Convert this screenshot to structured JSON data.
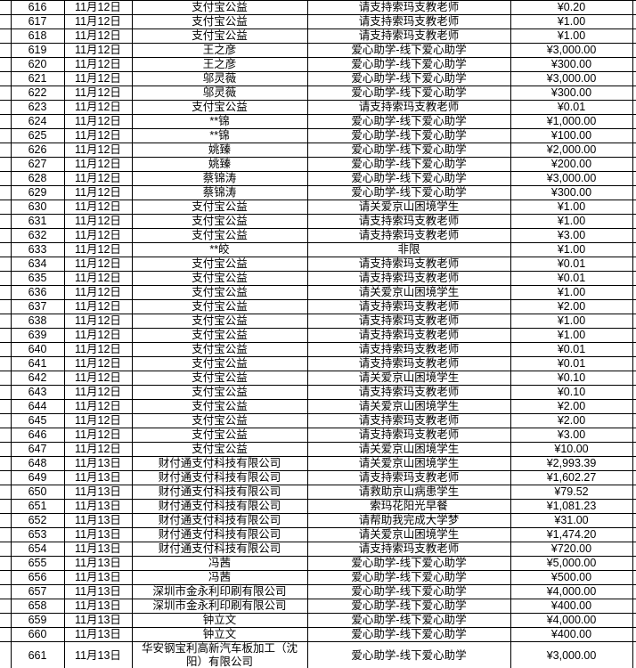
{
  "table": {
    "columns": [
      {
        "key": "id",
        "label": "serial-number"
      },
      {
        "key": "date",
        "label": "donation-date"
      },
      {
        "key": "donor",
        "label": "donor-name"
      },
      {
        "key": "project",
        "label": "donation-project"
      },
      {
        "key": "amount",
        "label": "donation-amount"
      }
    ],
    "rows": [
      {
        "id": "616",
        "date": "11月12日",
        "donor": "支付宝公益",
        "project": "请支持索玛支教老师",
        "amount": "¥0.20"
      },
      {
        "id": "617",
        "date": "11月12日",
        "donor": "支付宝公益",
        "project": "请支持索玛支教老师",
        "amount": "¥1.00"
      },
      {
        "id": "618",
        "date": "11月12日",
        "donor": "支付宝公益",
        "project": "请支持索玛支教老师",
        "amount": "¥1.00"
      },
      {
        "id": "619",
        "date": "11月12日",
        "donor": "王之彦",
        "project": "爱心助学-线下爱心助学",
        "amount": "¥3,000.00"
      },
      {
        "id": "620",
        "date": "11月12日",
        "donor": "王之彦",
        "project": "爱心助学-线下爱心助学",
        "amount": "¥300.00"
      },
      {
        "id": "621",
        "date": "11月12日",
        "donor": "邬灵薇",
        "project": "爱心助学-线下爱心助学",
        "amount": "¥3,000.00"
      },
      {
        "id": "622",
        "date": "11月12日",
        "donor": "邬灵薇",
        "project": "爱心助学-线下爱心助学",
        "amount": "¥300.00"
      },
      {
        "id": "623",
        "date": "11月12日",
        "donor": "支付宝公益",
        "project": "请支持索玛支教老师",
        "amount": "¥0.01"
      },
      {
        "id": "624",
        "date": "11月12日",
        "donor": "**锦",
        "project": "爱心助学-线下爱心助学",
        "amount": "¥1,000.00"
      },
      {
        "id": "625",
        "date": "11月12日",
        "donor": "**锦",
        "project": "爱心助学-线下爱心助学",
        "amount": "¥100.00"
      },
      {
        "id": "626",
        "date": "11月12日",
        "donor": "姚臻",
        "project": "爱心助学-线下爱心助学",
        "amount": "¥2,000.00"
      },
      {
        "id": "627",
        "date": "11月12日",
        "donor": "姚臻",
        "project": "爱心助学-线下爱心助学",
        "amount": "¥200.00"
      },
      {
        "id": "628",
        "date": "11月12日",
        "donor": "蔡锦涛",
        "project": "爱心助学-线下爱心助学",
        "amount": "¥3,000.00"
      },
      {
        "id": "629",
        "date": "11月12日",
        "donor": "蔡锦涛",
        "project": "爱心助学-线下爱心助学",
        "amount": "¥300.00"
      },
      {
        "id": "630",
        "date": "11月12日",
        "donor": "支付宝公益",
        "project": "请关爱京山困境学生",
        "amount": "¥1.00"
      },
      {
        "id": "631",
        "date": "11月12日",
        "donor": "支付宝公益",
        "project": "请支持索玛支教老师",
        "amount": "¥1.00"
      },
      {
        "id": "632",
        "date": "11月12日",
        "donor": "支付宝公益",
        "project": "请支持索玛支教老师",
        "amount": "¥3.00"
      },
      {
        "id": "633",
        "date": "11月12日",
        "donor": "**皎",
        "project": "非限",
        "amount": "¥1.00"
      },
      {
        "id": "634",
        "date": "11月12日",
        "donor": "支付宝公益",
        "project": "请支持索玛支教老师",
        "amount": "¥0.01"
      },
      {
        "id": "635",
        "date": "11月12日",
        "donor": "支付宝公益",
        "project": "请支持索玛支教老师",
        "amount": "¥0.01"
      },
      {
        "id": "636",
        "date": "11月12日",
        "donor": "支付宝公益",
        "project": "请关爱京山困境学生",
        "amount": "¥1.00"
      },
      {
        "id": "637",
        "date": "11月12日",
        "donor": "支付宝公益",
        "project": "请支持索玛支教老师",
        "amount": "¥2.00"
      },
      {
        "id": "638",
        "date": "11月12日",
        "donor": "支付宝公益",
        "project": "请支持索玛支教老师",
        "amount": "¥1.00"
      },
      {
        "id": "639",
        "date": "11月12日",
        "donor": "支付宝公益",
        "project": "请支持索玛支教老师",
        "amount": "¥1.00"
      },
      {
        "id": "640",
        "date": "11月12日",
        "donor": "支付宝公益",
        "project": "请支持索玛支教老师",
        "amount": "¥0.01"
      },
      {
        "id": "641",
        "date": "11月12日",
        "donor": "支付宝公益",
        "project": "请支持索玛支教老师",
        "amount": "¥0.01"
      },
      {
        "id": "642",
        "date": "11月12日",
        "donor": "支付宝公益",
        "project": "请关爱京山困境学生",
        "amount": "¥0.10"
      },
      {
        "id": "643",
        "date": "11月12日",
        "donor": "支付宝公益",
        "project": "请支持索玛支教老师",
        "amount": "¥0.10"
      },
      {
        "id": "644",
        "date": "11月12日",
        "donor": "支付宝公益",
        "project": "请关爱京山困境学生",
        "amount": "¥2.00"
      },
      {
        "id": "645",
        "date": "11月12日",
        "donor": "支付宝公益",
        "project": "请支持索玛支教老师",
        "amount": "¥2.00"
      },
      {
        "id": "646",
        "date": "11月12日",
        "donor": "支付宝公益",
        "project": "请支持索玛支教老师",
        "amount": "¥3.00"
      },
      {
        "id": "647",
        "date": "11月12日",
        "donor": "支付宝公益",
        "project": "请关爱京山困境学生",
        "amount": "¥10.00"
      },
      {
        "id": "648",
        "date": "11月13日",
        "donor": "财付通支付科技有限公司",
        "project": "请关爱京山困境学生",
        "amount": "¥2,993.39"
      },
      {
        "id": "649",
        "date": "11月13日",
        "donor": "财付通支付科技有限公司",
        "project": "请支持索玛支教老师",
        "amount": "¥1,602.27"
      },
      {
        "id": "650",
        "date": "11月13日",
        "donor": "财付通支付科技有限公司",
        "project": "请救助京山病患学生",
        "amount": "¥79.52"
      },
      {
        "id": "651",
        "date": "11月13日",
        "donor": "财付通支付科技有限公司",
        "project": "索玛花阳光早餐",
        "amount": "¥1,081.23"
      },
      {
        "id": "652",
        "date": "11月13日",
        "donor": "财付通支付科技有限公司",
        "project": "请帮助我完成大学梦",
        "amount": "¥31.00"
      },
      {
        "id": "653",
        "date": "11月13日",
        "donor": "财付通支付科技有限公司",
        "project": "请关爱京山困境学生",
        "amount": "¥1,474.20"
      },
      {
        "id": "654",
        "date": "11月13日",
        "donor": "财付通支付科技有限公司",
        "project": "请支持索玛支教老师",
        "amount": "¥720.00"
      },
      {
        "id": "655",
        "date": "11月13日",
        "donor": "冯茜",
        "project": "爱心助学-线下爱心助学",
        "amount": "¥5,000.00"
      },
      {
        "id": "656",
        "date": "11月13日",
        "donor": "冯茜",
        "project": "爱心助学-线下爱心助学",
        "amount": "¥500.00"
      },
      {
        "id": "657",
        "date": "11月13日",
        "donor": "深圳市金永利印刷有限公司",
        "project": "爱心助学-线下爱心助学",
        "amount": "¥4,000.00"
      },
      {
        "id": "658",
        "date": "11月13日",
        "donor": "深圳市金永利印刷有限公司",
        "project": "爱心助学-线下爱心助学",
        "amount": "¥400.00"
      },
      {
        "id": "659",
        "date": "11月13日",
        "donor": "钟立文",
        "project": "爱心助学-线下爱心助学",
        "amount": "¥4,000.00"
      },
      {
        "id": "660",
        "date": "11月13日",
        "donor": "钟立文",
        "project": "爱心助学-线下爱心助学",
        "amount": "¥400.00"
      },
      {
        "id": "661",
        "date": "11月13日",
        "donor": "华安钢宝利高新汽车板加工（沈阳）有限公司",
        "project": "爱心助学-线下爱心助学",
        "amount": "¥3,000.00"
      }
    ]
  },
  "colors": {
    "border": "#000000",
    "text": "#000000",
    "background": "#ffffff"
  }
}
